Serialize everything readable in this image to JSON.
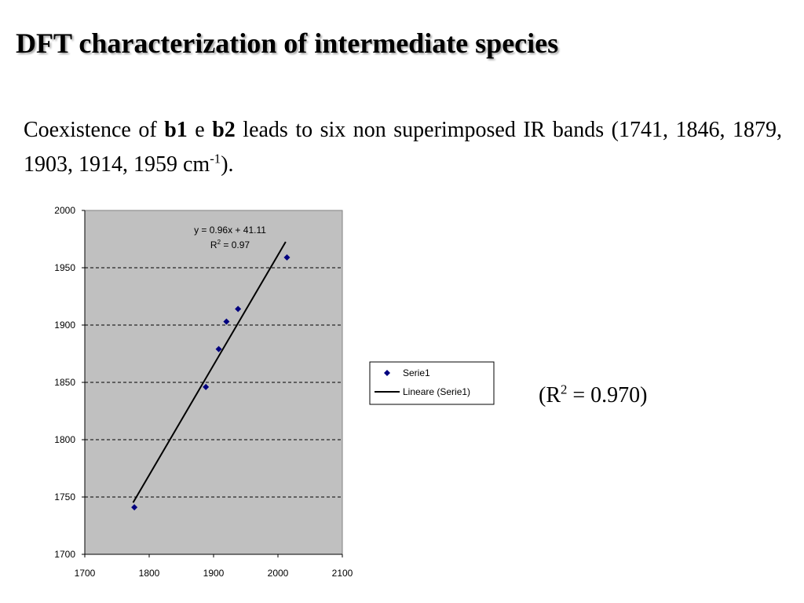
{
  "slide": {
    "title": "DFT characterization of intermediate species",
    "text": {
      "intro": "Coexistence of ",
      "b1": "b1",
      "e": " e ",
      "b2": "b2",
      "rest": " leads to six non superimposed IR bands (1741, 1846, 1879, 1903, 1914, 1959 cm",
      "sup": "-1",
      "end": ")."
    },
    "r2_note": {
      "prefix": "(R",
      "sup": "2",
      "suffix": " = 0.970)"
    }
  },
  "chart_data": {
    "type": "scatter",
    "series": [
      {
        "name": "Serie1",
        "marker": "diamond",
        "color": "#00007f",
        "points": [
          {
            "x": 1777,
            "y": 1741
          },
          {
            "x": 1888,
            "y": 1846
          },
          {
            "x": 1908,
            "y": 1879
          },
          {
            "x": 1920,
            "y": 1903
          },
          {
            "x": 1938,
            "y": 1914
          },
          {
            "x": 2014,
            "y": 1959
          }
        ]
      }
    ],
    "trendline": {
      "name": "Lineare (Serie1)",
      "slope": 0.96,
      "intercept": 41.11,
      "x_range": [
        1775,
        2012
      ],
      "color": "#000000"
    },
    "equation_label": "y = 0.96x + 41.11",
    "r2_label_prefix": "R",
    "r2_label_sup": "2",
    "r2_label_suffix": " = 0.97",
    "xlim": [
      1700,
      2100
    ],
    "ylim": [
      1700,
      2000
    ],
    "x_ticks": [
      "1700",
      "1800",
      "1900",
      "2000",
      "2100"
    ],
    "x_tick_values": [
      1700,
      1800,
      1900,
      2000,
      2100
    ],
    "y_ticks": [
      "1700",
      "1750",
      "1800",
      "1850",
      "1900",
      "1950",
      "2000"
    ],
    "y_tick_values": [
      1700,
      1750,
      1800,
      1850,
      1900,
      1950,
      2000
    ],
    "grid": "horizontal dashed",
    "plot_background": "#c0c0c0",
    "legend": {
      "placement": "right",
      "entries": [
        "Serie1",
        "Lineare (Serie1)"
      ]
    }
  }
}
